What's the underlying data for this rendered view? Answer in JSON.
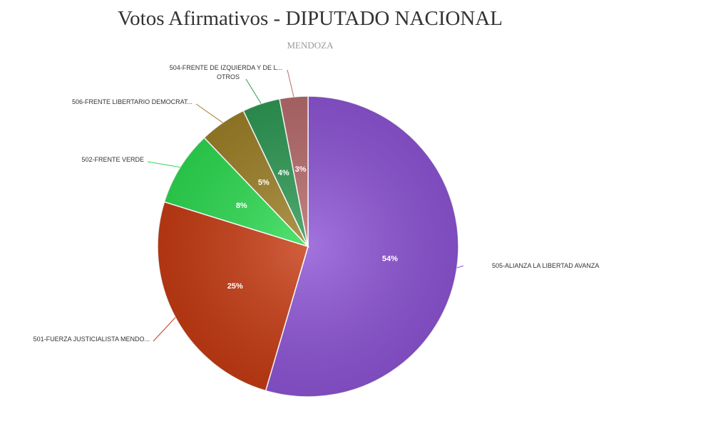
{
  "chart_data": {
    "type": "pie",
    "title": "Votos Afirmativos - DIPUTADO NACIONAL",
    "subtitle": "MENDOZA",
    "slices": [
      {
        "name": "505-ALIANZA LA LIBERTAD AVANZA",
        "value": 54,
        "label": "54%",
        "color": "#8e55d6"
      },
      {
        "name": "501-FUERZA JUSTICIALISTA MENDO...",
        "value": 25,
        "label": "25%",
        "color": "#c73c14"
      },
      {
        "name": "502-FRENTE VERDE",
        "value": 8,
        "label": "8%",
        "color": "#2edc52"
      },
      {
        "name": "506-FRENTE LIBERTARIO DEMOCRAT...",
        "value": 5,
        "label": "5%",
        "color": "#9e8128"
      },
      {
        "name": "OTROS",
        "value": 4,
        "label": "4%",
        "color": "#2f9a55"
      },
      {
        "name": "504-FRENTE DE IZQUIERDA Y DE L...",
        "value": 3,
        "label": "3%",
        "color": "#b86c6c"
      }
    ]
  }
}
